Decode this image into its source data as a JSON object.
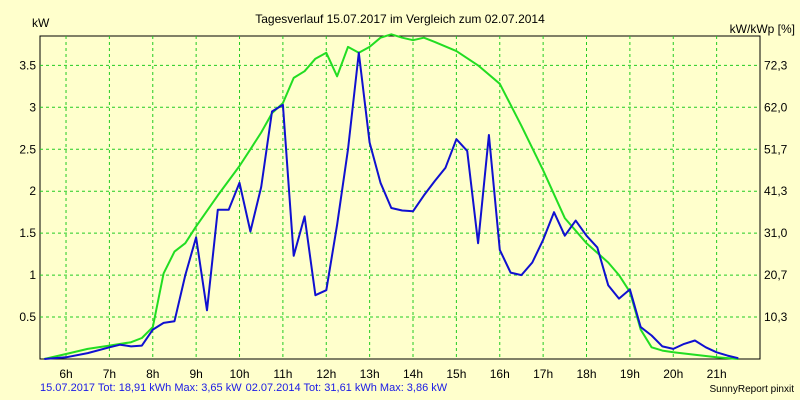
{
  "chart_data": {
    "type": "line",
    "title": "Tagesverlauf 15.07.2017 im Vergleich zum 02.07.2014",
    "ylabel_left": "kW",
    "ylabel_right": "kW/kWp [%]",
    "xlim": [
      5.4,
      22.0
    ],
    "ylim": [
      0,
      3.85
    ],
    "grid": true,
    "x_ticks": [
      6,
      7,
      8,
      9,
      10,
      11,
      12,
      13,
      14,
      15,
      16,
      17,
      18,
      19,
      20,
      21
    ],
    "x_tick_labels": [
      "6h",
      "7h",
      "8h",
      "9h",
      "10h",
      "11h",
      "12h",
      "13h",
      "14h",
      "15h",
      "16h",
      "17h",
      "18h",
      "19h",
      "20h",
      "21h"
    ],
    "y_ticks": [
      0.5,
      1,
      1.5,
      2,
      2.5,
      3,
      3.5
    ],
    "y_tick_labels": [
      "0.5",
      "1",
      "1.5",
      "2",
      "2.5",
      "3",
      "3.5"
    ],
    "y2_ticks": [
      0.5,
      1,
      1.5,
      2,
      2.5,
      3,
      3.5
    ],
    "y2_tick_labels": [
      "10,3",
      "20,7",
      "31,0",
      "41,3",
      "51,7",
      "62,0",
      "72,3"
    ],
    "series": [
      {
        "color": "#1010d0",
        "x": [
          5.5,
          6.0,
          6.5,
          7.0,
          7.25,
          7.5,
          7.75,
          8.0,
          8.25,
          8.5,
          8.75,
          9.0,
          9.25,
          9.5,
          9.75,
          10.0,
          10.25,
          10.5,
          10.75,
          11.0,
          11.25,
          11.5,
          11.75,
          12.0,
          12.25,
          12.5,
          12.75,
          13.0,
          13.25,
          13.5,
          13.75,
          14.0,
          14.25,
          14.5,
          14.75,
          15.0,
          15.25,
          15.5,
          15.75,
          16.0,
          16.25,
          16.5,
          16.75,
          17.0,
          17.25,
          17.5,
          17.75,
          18.0,
          18.25,
          18.5,
          18.75,
          19.0,
          19.25,
          19.5,
          19.75,
          20.0,
          20.25,
          20.5,
          20.75,
          21.0,
          21.25,
          21.5
        ],
        "values": [
          0.0,
          0.02,
          0.07,
          0.14,
          0.17,
          0.15,
          0.16,
          0.35,
          0.43,
          0.45,
          1.0,
          1.45,
          0.58,
          1.78,
          1.78,
          2.1,
          1.52,
          2.05,
          2.95,
          3.03,
          1.23,
          1.7,
          0.76,
          0.82,
          1.6,
          2.5,
          3.65,
          2.58,
          2.1,
          1.8,
          1.77,
          1.76,
          1.95,
          2.12,
          2.28,
          2.62,
          2.48,
          1.38,
          2.67,
          1.3,
          1.03,
          1.0,
          1.15,
          1.42,
          1.75,
          1.47,
          1.65,
          1.47,
          1.33,
          0.88,
          0.72,
          0.83,
          0.38,
          0.28,
          0.15,
          0.12,
          0.18,
          0.22,
          0.14,
          0.08,
          0.04,
          0.01
        ]
      },
      {
        "color": "#22dd22",
        "x": [
          5.5,
          6.0,
          6.5,
          7.0,
          7.5,
          7.75,
          8.0,
          8.25,
          8.5,
          8.75,
          9.0,
          9.5,
          10.0,
          10.25,
          10.5,
          10.75,
          11.0,
          11.25,
          11.5,
          11.75,
          12.0,
          12.25,
          12.5,
          12.75,
          13.0,
          13.25,
          13.5,
          13.75,
          14.0,
          14.25,
          14.5,
          15.0,
          15.5,
          16.0,
          16.5,
          17.0,
          17.5,
          18.0,
          18.5,
          18.75,
          19.0,
          19.25,
          19.5,
          19.75,
          20.0,
          20.5,
          21.0,
          21.5
        ],
        "values": [
          0.0,
          0.06,
          0.12,
          0.16,
          0.2,
          0.25,
          0.38,
          1.02,
          1.28,
          1.38,
          1.58,
          1.95,
          2.3,
          2.5,
          2.7,
          2.93,
          3.05,
          3.35,
          3.43,
          3.58,
          3.65,
          3.37,
          3.72,
          3.65,
          3.72,
          3.83,
          3.87,
          3.83,
          3.8,
          3.83,
          3.78,
          3.67,
          3.5,
          3.28,
          2.78,
          2.25,
          1.68,
          1.38,
          1.15,
          1.0,
          0.8,
          0.35,
          0.14,
          0.1,
          0.08,
          0.05,
          0.02,
          0.0
        ]
      }
    ]
  },
  "footer": {
    "entry1": "15.07.2017 Tot: 18,91 kWh Max: 3,65 kW",
    "entry2": "02.07.2014 Tot: 31,61 kWh Max: 3,86 kW",
    "credit": "SunnyReport pinxit"
  }
}
